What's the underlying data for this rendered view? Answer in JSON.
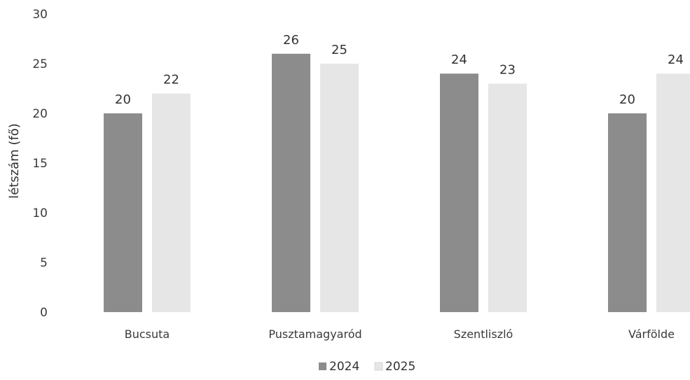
{
  "chart_data": {
    "type": "bar",
    "categories": [
      "Bucsuta",
      "Pusztamagyaród",
      "Szentliszló",
      "Várfölde"
    ],
    "series": [
      {
        "name": "2024",
        "values": [
          20,
          26,
          24,
          20
        ],
        "color": "#8c8c8c"
      },
      {
        "name": "2025",
        "values": [
          22,
          25,
          23,
          24
        ],
        "color": "#e6e6e6"
      }
    ],
    "ylabel": "létszám (fő)",
    "xlabel": "",
    "ylim": [
      0,
      30
    ],
    "yticks": [
      0,
      5,
      10,
      15,
      20,
      25,
      30
    ],
    "grid": false,
    "legend_position": "bottom",
    "data_labels": true
  }
}
